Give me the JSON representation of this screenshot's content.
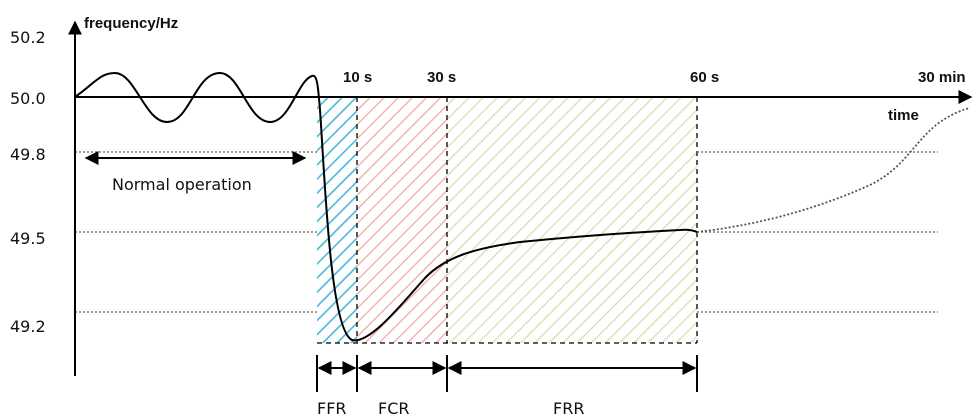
{
  "axes": {
    "y_label": "frequency/Hz",
    "x_label": "time",
    "y_ticks": [
      "50.2",
      "50.0",
      "49.8",
      "49.5",
      "49.2"
    ],
    "time_marks": [
      "10 s",
      "30 s",
      "60 s",
      "30 min"
    ]
  },
  "annotations": {
    "normal_operation": "Normal operation"
  },
  "phases": [
    {
      "key": "ffr",
      "label": "FFR",
      "color": "#48b9d8"
    },
    {
      "key": "fcr",
      "label": "FCR",
      "color": "#f2a3a3"
    },
    {
      "key": "frr",
      "label": "FRR",
      "color": "#cfe0a8"
    }
  ],
  "colors": {
    "line": "#000000",
    "grid": "#7f7f7f"
  }
}
